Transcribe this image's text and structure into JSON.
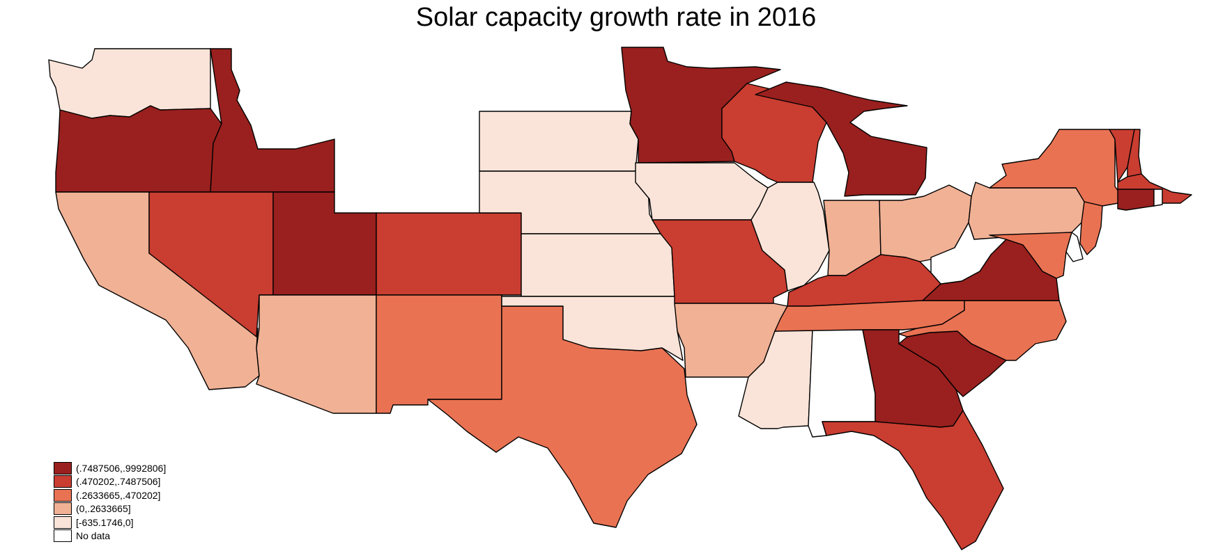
{
  "title": "Solar capacity growth rate in 2016",
  "colors": {
    "c5": "#99201e",
    "c4": "#ca3d31",
    "c3": "#e97253",
    "c2": "#f1b195",
    "c1": "#fae4d9",
    "c0": "#ffffff"
  },
  "legend": [
    {
      "label": "(.7487506,.9992806]",
      "color_key": "c5"
    },
    {
      "label": "(.470202,.7487506]",
      "color_key": "c4"
    },
    {
      "label": "(.2633665,.470202]",
      "color_key": "c3"
    },
    {
      "label": "(0,.2633665]",
      "color_key": "c2"
    },
    {
      "label": "[-635.1746,0]",
      "color_key": "c1"
    },
    {
      "label": "No data",
      "color_key": "c0"
    }
  ],
  "states": [
    {
      "name": "Washington",
      "class": "c1"
    },
    {
      "name": "Oregon",
      "class": "c5"
    },
    {
      "name": "Idaho",
      "class": "c5"
    },
    {
      "name": "California",
      "class": "c2"
    },
    {
      "name": "Nevada",
      "class": "c4"
    },
    {
      "name": "Utah",
      "class": "c5"
    },
    {
      "name": "Arizona",
      "class": "c2"
    },
    {
      "name": "Colorado",
      "class": "c4"
    },
    {
      "name": "New Mexico",
      "class": "c3"
    },
    {
      "name": "Texas",
      "class": "c3"
    },
    {
      "name": "South Dakota",
      "class": "c1"
    },
    {
      "name": "Nebraska",
      "class": "c1"
    },
    {
      "name": "Kansas",
      "class": "c1"
    },
    {
      "name": "Oklahoma",
      "class": "c1"
    },
    {
      "name": "Minnesota",
      "class": "c5"
    },
    {
      "name": "Iowa",
      "class": "c1"
    },
    {
      "name": "Missouri",
      "class": "c4"
    },
    {
      "name": "Arkansas",
      "class": "c2"
    },
    {
      "name": "Wisconsin",
      "class": "c4"
    },
    {
      "name": "Illinois",
      "class": "c1"
    },
    {
      "name": "Mississippi",
      "class": "c1"
    },
    {
      "name": "Alabama",
      "class": "c0"
    },
    {
      "name": "Michigan",
      "class": "c5"
    },
    {
      "name": "Indiana",
      "class": "c2"
    },
    {
      "name": "Ohio",
      "class": "c2"
    },
    {
      "name": "Kentucky",
      "class": "c4"
    },
    {
      "name": "Tennessee",
      "class": "c3"
    },
    {
      "name": "Georgia",
      "class": "c5"
    },
    {
      "name": "South Carolina",
      "class": "c5"
    },
    {
      "name": "North Carolina",
      "class": "c3"
    },
    {
      "name": "Florida",
      "class": "c4"
    },
    {
      "name": "Virginia",
      "class": "c5"
    },
    {
      "name": "West Virginia",
      "class": "c0"
    },
    {
      "name": "Pennsylvania",
      "class": "c2"
    },
    {
      "name": "New York",
      "class": "c3"
    },
    {
      "name": "Vermont",
      "class": "c4"
    },
    {
      "name": "New Hampshire",
      "class": "c4"
    },
    {
      "name": "Massachusetts",
      "class": "c4"
    },
    {
      "name": "Connecticut",
      "class": "c5"
    },
    {
      "name": "Rhode Island",
      "class": "c0"
    },
    {
      "name": "New Jersey",
      "class": "c3"
    },
    {
      "name": "Maryland",
      "class": "c3"
    },
    {
      "name": "Delaware",
      "class": "c0"
    }
  ]
}
